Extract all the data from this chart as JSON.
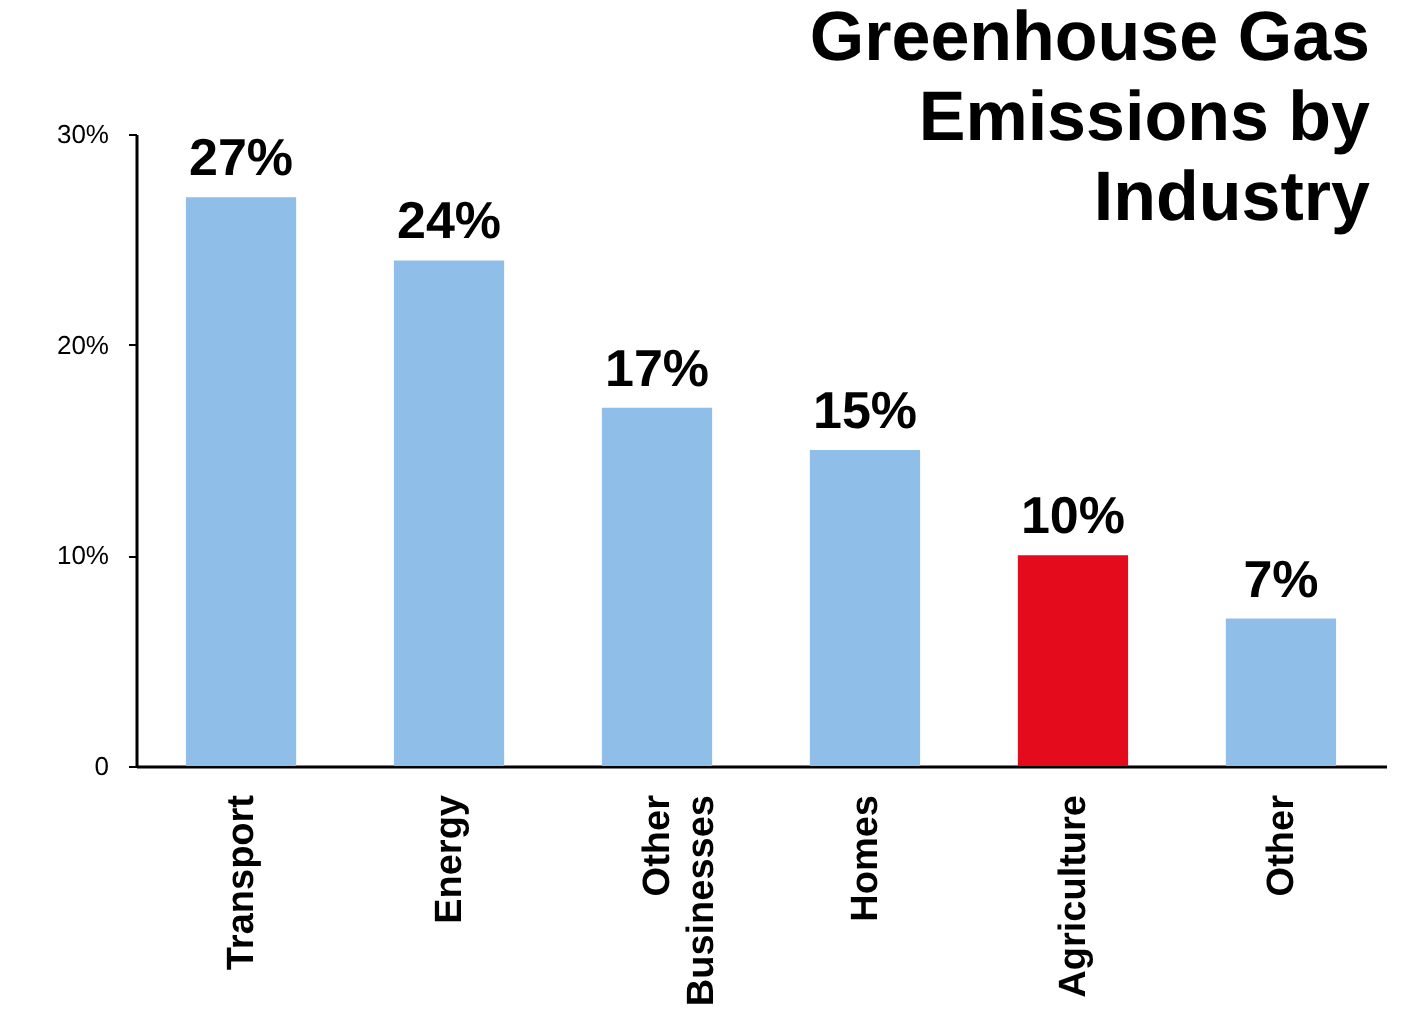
{
  "chart_data": {
    "type": "bar",
    "title": "Greenhouse Gas Emissions by Industry",
    "categories": [
      "Transport",
      "Energy",
      "Other Businesses",
      "Homes",
      "Agriculture",
      "Other"
    ],
    "values": [
      27,
      24,
      17,
      15,
      10,
      7
    ],
    "colors": [
      "#8fbee8",
      "#8fbee8",
      "#8fbee8",
      "#8fbee8",
      "#e30b1c",
      "#8fbee8"
    ],
    "value_labels": [
      "27%",
      "24%",
      "17%",
      "15%",
      "10%",
      "7%"
    ],
    "ylim": [
      0,
      30
    ],
    "yticks": [
      0,
      {
        "value": 10,
        "label": "10%"
      },
      {
        "value": 20,
        "label": "20%"
      },
      {
        "value": 30,
        "label": "30%"
      }
    ],
    "grid": false
  }
}
